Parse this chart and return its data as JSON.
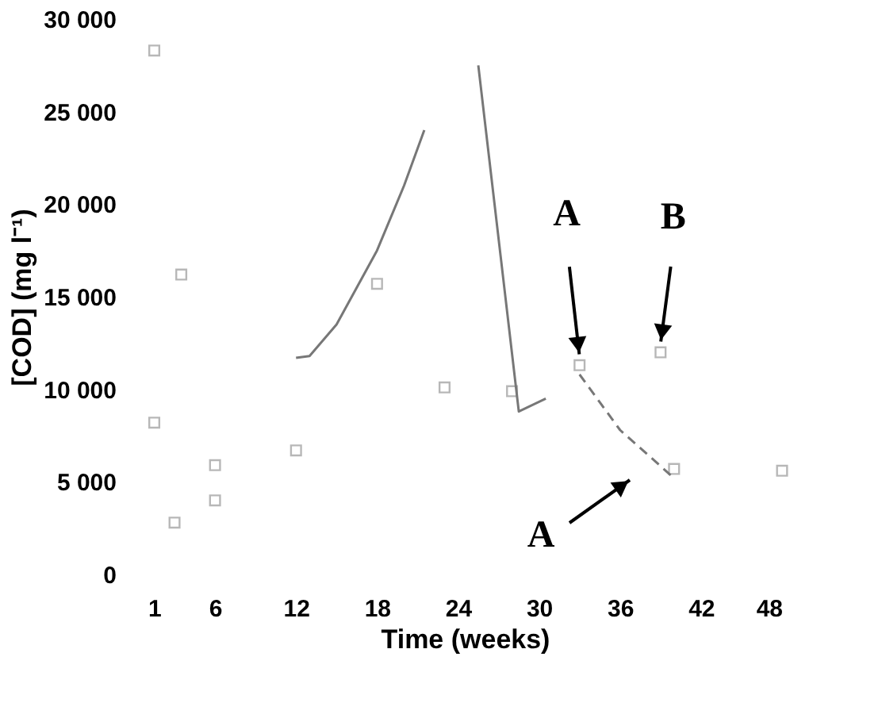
{
  "chart_data": {
    "type": "scatter",
    "xlabel": "Time (weeks)",
    "ylabel": "[COD] (mg l⁻¹)",
    "xlim": [
      1,
      48
    ],
    "ylim": [
      0,
      30000
    ],
    "xticks": [
      1,
      6,
      12,
      18,
      24,
      30,
      36,
      42,
      48
    ],
    "yticks": [
      {
        "value": 0,
        "label": "0"
      },
      {
        "value": 5000,
        "label": "5 000"
      },
      {
        "value": 10000,
        "label": "10 000"
      },
      {
        "value": 15000,
        "label": "15 000"
      },
      {
        "value": 20000,
        "label": "20 000"
      },
      {
        "value": 25000,
        "label": "25 000"
      },
      {
        "value": 30000,
        "label": "30 000"
      }
    ],
    "grid": false,
    "series": [
      {
        "marker": "square",
        "color": "#9a9a9a",
        "x": [
          1.5,
          1.5,
          3,
          3.5,
          6,
          6,
          12,
          18,
          23,
          28,
          33,
          39,
          40,
          48
        ],
        "values": [
          28300,
          8200,
          2800,
          16200,
          5900,
          4000,
          6700,
          15700,
          10100,
          9900,
          11300,
          12000,
          5700,
          5600
        ]
      },
      {
        "type": "line",
        "marker": "none",
        "line_style": "solid",
        "color": "#777777",
        "x": [
          12,
          13,
          15,
          18,
          20,
          21.5
        ],
        "values": [
          11700,
          11800,
          13500,
          17500,
          21000,
          24000
        ]
      },
      {
        "type": "line",
        "marker": "none",
        "line_style": "solid",
        "color": "#777777",
        "x": [
          25.5,
          28.5,
          30.5
        ],
        "values": [
          27500,
          8800,
          9500
        ]
      },
      {
        "type": "line",
        "marker": "none",
        "line_style": "dashed",
        "color": "#777777",
        "x": [
          33,
          36,
          40
        ],
        "values": [
          10800,
          7800,
          5200
        ]
      }
    ],
    "annotations": [
      {
        "text": "A",
        "x": 33,
        "y": 11300
      },
      {
        "text": "B",
        "x": 39,
        "y": 12000
      },
      "A"
    ]
  }
}
